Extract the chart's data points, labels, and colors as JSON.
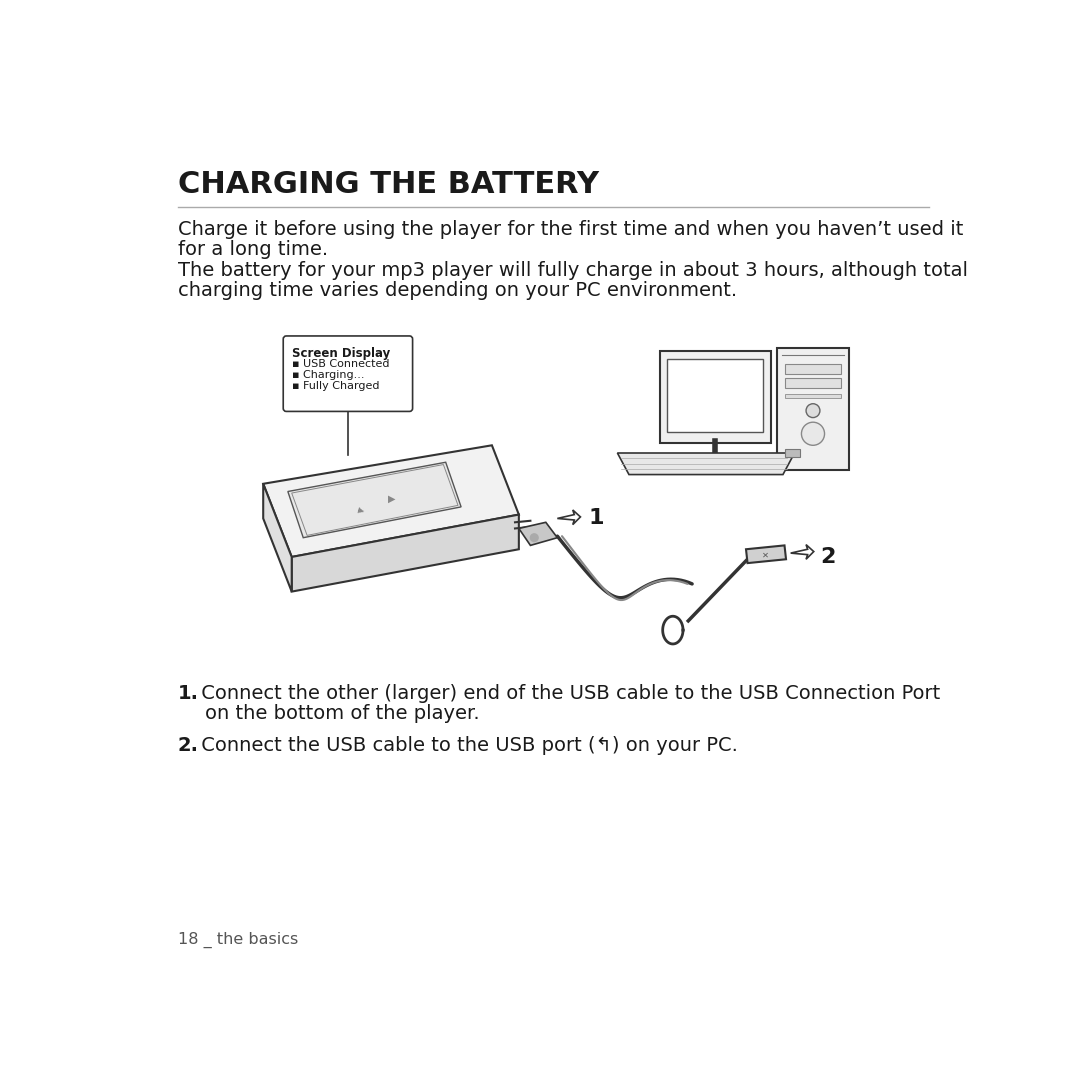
{
  "title": "CHARGING THE BATTERY",
  "bg_color": "#ffffff",
  "text_color": "#1a1a1a",
  "gray_color": "#555555",
  "line_color": "#333333",
  "intro_line1": "Charge it before using the player for the first time and when you haven’t used it",
  "intro_line2": "for a long time.",
  "intro_line3": "The battery for your mp3 player will fully charge in about 3 hours, although total",
  "intro_line4": "charging time varies depending on your PC environment.",
  "callout_title": "Screen Display",
  "callout_item1": "▪ USB Connected",
  "callout_item2": "▪ Charging...",
  "callout_item3": "▪ Fully Charged",
  "step1_bold": "1.",
  "step1_text": " Connect the other (larger) end of the USB cable to the USB Connection Port",
  "step1_cont": "on the bottom of the player.",
  "step2_bold": "2.",
  "step2_text": " Connect the USB cable to the USB port (↰) on your PC.",
  "num1": "1",
  "num2": "2",
  "footer": "18 _ the basics"
}
